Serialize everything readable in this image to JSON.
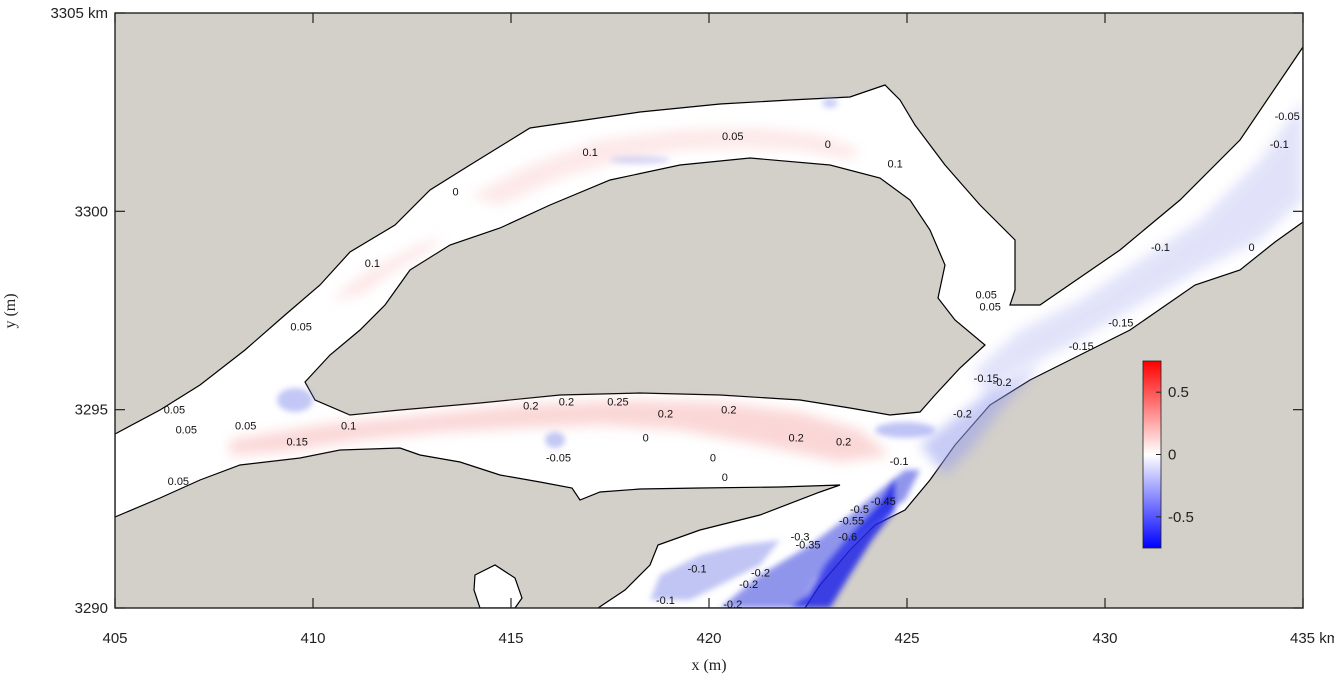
{
  "chart_data": {
    "type": "heatmap",
    "title": "",
    "xlabel": "x (m)",
    "ylabel": "y (m)",
    "xlim": [
      405,
      435
    ],
    "ylim": [
      3290,
      3305
    ],
    "x_ticks": [
      {
        "value": 405,
        "label": "405"
      },
      {
        "value": 410,
        "label": "410"
      },
      {
        "value": 415,
        "label": "415"
      },
      {
        "value": 420,
        "label": "420"
      },
      {
        "value": 425,
        "label": "425"
      },
      {
        "value": 430,
        "label": "430"
      },
      {
        "value": 435,
        "label": "435 km"
      }
    ],
    "y_ticks": [
      {
        "value": 3290,
        "label": "3290"
      },
      {
        "value": 3295,
        "label": "3295"
      },
      {
        "value": 3300,
        "label": "3300"
      },
      {
        "value": 3305,
        "label": "3305 km"
      }
    ],
    "colorbar": {
      "range": [
        -0.75,
        0.75
      ],
      "ticks": [
        {
          "value": 0.5,
          "label": "0.5"
        },
        {
          "value": 0,
          "label": "0"
        },
        {
          "value": -0.5,
          "label": "-0.5"
        }
      ],
      "colors": {
        "high": "#ff0000",
        "mid": "#ffffff",
        "low": "#0000ff"
      }
    },
    "colors": {
      "land": "#d3cfc9",
      "water": "#ffffff",
      "outline": "#000000"
    },
    "contour_labels": [
      {
        "x": 413.6,
        "y": 3300.5,
        "value": "0"
      },
      {
        "x": 417.0,
        "y": 3301.5,
        "value": "0.1"
      },
      {
        "x": 420.6,
        "y": 3301.9,
        "value": "0.05"
      },
      {
        "x": 423.0,
        "y": 3301.7,
        "value": "0"
      },
      {
        "x": 424.7,
        "y": 3301.2,
        "value": "0.1"
      },
      {
        "x": 411.5,
        "y": 3298.7,
        "value": "0.1"
      },
      {
        "x": 409.7,
        "y": 3297.1,
        "value": "0.05"
      },
      {
        "x": 406.5,
        "y": 3295.0,
        "value": "0.05"
      },
      {
        "x": 406.8,
        "y": 3294.5,
        "value": "0.05"
      },
      {
        "x": 408.3,
        "y": 3294.6,
        "value": "0.05"
      },
      {
        "x": 410.9,
        "y": 3294.6,
        "value": "0.1"
      },
      {
        "x": 409.6,
        "y": 3294.2,
        "value": "0.15"
      },
      {
        "x": 406.6,
        "y": 3293.2,
        "value": "0.05"
      },
      {
        "x": 415.5,
        "y": 3295.1,
        "value": "0.2"
      },
      {
        "x": 416.4,
        "y": 3295.2,
        "value": "0.2"
      },
      {
        "x": 417.7,
        "y": 3295.2,
        "value": "0.25"
      },
      {
        "x": 418.9,
        "y": 3294.9,
        "value": "0.2"
      },
      {
        "x": 420.5,
        "y": 3295.0,
        "value": "0.2"
      },
      {
        "x": 422.2,
        "y": 3294.3,
        "value": "0.2"
      },
      {
        "x": 423.4,
        "y": 3294.2,
        "value": "0.2"
      },
      {
        "x": 418.4,
        "y": 3294.3,
        "value": "0"
      },
      {
        "x": 416.2,
        "y": 3293.8,
        "value": "-0.05"
      },
      {
        "x": 420.1,
        "y": 3293.8,
        "value": "0"
      },
      {
        "x": 420.4,
        "y": 3293.3,
        "value": "0"
      },
      {
        "x": 424.8,
        "y": 3293.7,
        "value": "-0.1"
      },
      {
        "x": 424.4,
        "y": 3292.7,
        "value": "-0.45"
      },
      {
        "x": 423.8,
        "y": 3292.5,
        "value": "-0.5"
      },
      {
        "x": 423.6,
        "y": 3292.2,
        "value": "-0.55"
      },
      {
        "x": 423.5,
        "y": 3291.8,
        "value": "-0.6"
      },
      {
        "x": 422.3,
        "y": 3291.8,
        "value": "-0.3"
      },
      {
        "x": 422.5,
        "y": 3291.6,
        "value": "-0.35"
      },
      {
        "x": 419.7,
        "y": 3291.0,
        "value": "-0.1"
      },
      {
        "x": 421.3,
        "y": 3290.9,
        "value": "-0.2"
      },
      {
        "x": 421.0,
        "y": 3290.6,
        "value": "-0.2"
      },
      {
        "x": 418.9,
        "y": 3290.2,
        "value": "-0.1"
      },
      {
        "x": 420.6,
        "y": 3290.1,
        "value": "-0.2"
      },
      {
        "x": 427.0,
        "y": 3295.8,
        "value": "-0.15"
      },
      {
        "x": 427.4,
        "y": 3295.7,
        "value": "-0.2"
      },
      {
        "x": 426.4,
        "y": 3294.9,
        "value": "-0.2"
      },
      {
        "x": 427.0,
        "y": 3297.9,
        "value": "0.05"
      },
      {
        "x": 427.1,
        "y": 3297.6,
        "value": "0.05"
      },
      {
        "x": 430.4,
        "y": 3297.2,
        "value": "-0.15"
      },
      {
        "x": 429.4,
        "y": 3296.6,
        "value": "-0.15"
      },
      {
        "x": 431.4,
        "y": 3299.1,
        "value": "-0.1"
      },
      {
        "x": 433.7,
        "y": 3299.1,
        "value": "0"
      },
      {
        "x": 434.6,
        "y": 3302.4,
        "value": "-0.05"
      },
      {
        "x": 434.4,
        "y": 3301.7,
        "value": "-0.1"
      }
    ]
  }
}
